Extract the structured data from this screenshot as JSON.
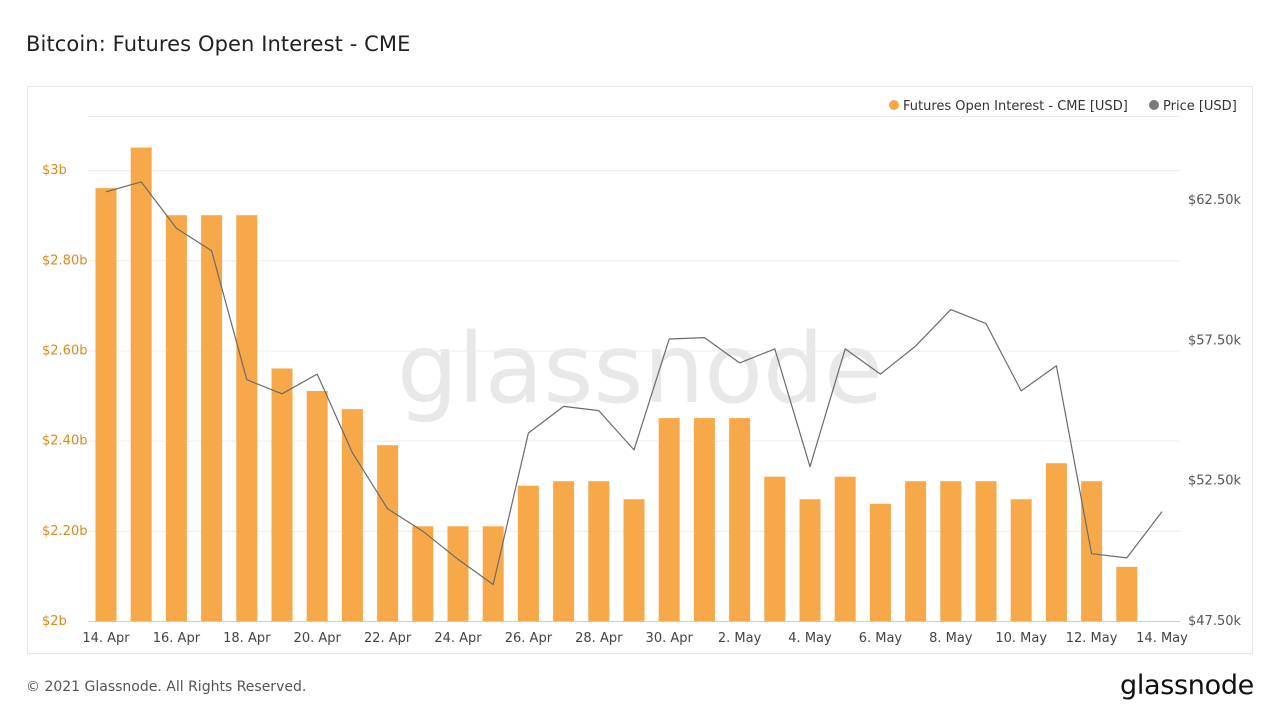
{
  "page": {
    "title": "Bitcoin: Futures Open Interest - CME",
    "copyright": "© 2021 Glassnode. All Rights Reserved.",
    "logo": "glassnode",
    "watermark": "glassnode"
  },
  "colors": {
    "bar": "#f7a94a",
    "price_line": "#6b6b6b",
    "left_axis_text": "#d98a1f",
    "right_axis_text": "#555555",
    "grid": "#ececec",
    "watermark": "#e8e8e8"
  },
  "chart_data": {
    "type": "bar",
    "title": "Bitcoin: Futures Open Interest - CME",
    "legend_position": "top-right",
    "grid": true,
    "x_tick_labels": [
      "14. Apr",
      "16. Apr",
      "18. Apr",
      "20. Apr",
      "22. Apr",
      "24. Apr",
      "26. Apr",
      "28. Apr",
      "30. Apr",
      "2. May",
      "4. May",
      "6. May",
      "8. May",
      "10. May",
      "12. May",
      "14. May"
    ],
    "left_axis": {
      "ylim": [
        2.0,
        3.12
      ],
      "ticks": [
        {
          "value": 2.0,
          "label": "$2b"
        },
        {
          "value": 2.2,
          "label": "$2.20b"
        },
        {
          "value": 2.4,
          "label": "$2.40b"
        },
        {
          "value": 2.6,
          "label": "$2.60b"
        },
        {
          "value": 2.8,
          "label": "$2.80b"
        },
        {
          "value": 3.0,
          "label": "$3b"
        }
      ]
    },
    "right_axis": {
      "ylim": [
        47500,
        65500
      ],
      "ticks": [
        {
          "value": 47500,
          "label": "$47.50k"
        },
        {
          "value": 52500,
          "label": "$52.50k"
        },
        {
          "value": 57500,
          "label": "$57.50k"
        },
        {
          "value": 62500,
          "label": "$62.50k"
        }
      ]
    },
    "series": [
      {
        "name": "Futures Open Interest - CME [USD]",
        "type": "bar",
        "axis": "left",
        "x": [
          "14. Apr",
          "15. Apr",
          "16. Apr",
          "17. Apr",
          "18. Apr",
          "19. Apr",
          "20. Apr",
          "21. Apr",
          "22. Apr",
          "23. Apr",
          "24. Apr",
          "25. Apr",
          "26. Apr",
          "27. Apr",
          "28. Apr",
          "29. Apr",
          "30. Apr",
          "1. May",
          "2. May",
          "3. May",
          "4. May",
          "5. May",
          "6. May",
          "7. May",
          "8. May",
          "9. May",
          "10. May",
          "11. May",
          "12. May",
          "13. May"
        ],
        "values": [
          2.96,
          3.05,
          2.9,
          2.9,
          2.9,
          2.56,
          2.51,
          2.47,
          2.39,
          2.21,
          2.21,
          2.21,
          2.3,
          2.31,
          2.31,
          2.27,
          2.45,
          2.45,
          2.45,
          2.32,
          2.27,
          2.32,
          2.26,
          2.31,
          2.31,
          2.31,
          2.27,
          2.35,
          2.31,
          2.12
        ]
      },
      {
        "name": "Price [USD]",
        "type": "line",
        "axis": "right",
        "x": [
          "14. Apr",
          "15. Apr",
          "16. Apr",
          "17. Apr",
          "18. Apr",
          "19. Apr",
          "20. Apr",
          "21. Apr",
          "22. Apr",
          "23. Apr",
          "24. Apr",
          "25. Apr",
          "26. Apr",
          "27. Apr",
          "28. Apr",
          "29. Apr",
          "30. Apr",
          "1. May",
          "2. May",
          "3. May",
          "4. May",
          "5. May",
          "6. May",
          "7. May",
          "8. May",
          "9. May",
          "10. May",
          "11. May",
          "12. May",
          "13. May",
          "14. May"
        ],
        "values": [
          62800,
          63150,
          61500,
          60700,
          56100,
          55600,
          56300,
          53500,
          51500,
          50700,
          49700,
          48800,
          54200,
          55150,
          55000,
          53600,
          57550,
          57600,
          56700,
          57200,
          53000,
          57200,
          56300,
          57300,
          58600,
          58100,
          55700,
          56600,
          49900,
          49750,
          51400
        ]
      }
    ]
  }
}
